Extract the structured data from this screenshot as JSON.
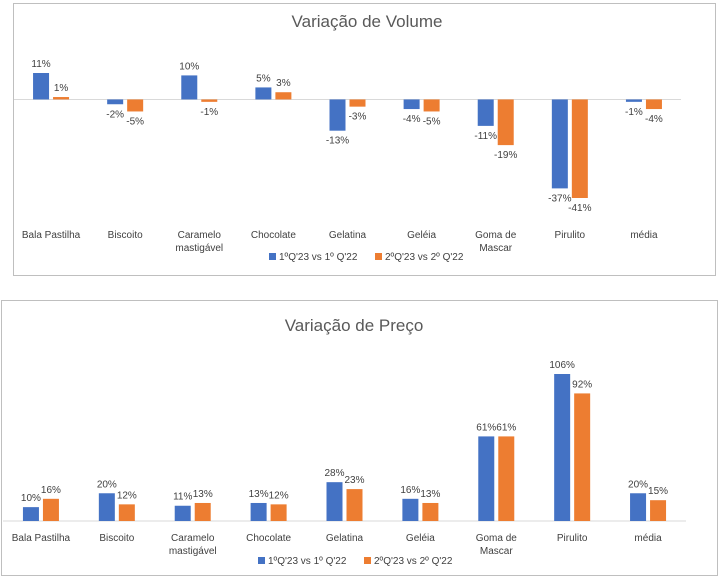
{
  "colors": {
    "series1": "#4472c4",
    "series2": "#ed7d31",
    "axis": "#d9d9d9",
    "text": "#404040",
    "title": "#595959"
  },
  "chart_data": [
    {
      "type": "bar",
      "title": "Variação de Volume",
      "categories": [
        [
          "Bala Pastilha"
        ],
        [
          "Biscoito"
        ],
        [
          "Caramelo",
          "mastigável"
        ],
        [
          "Chocolate"
        ],
        [
          "Gelatina"
        ],
        [
          "Geléia"
        ],
        [
          "Goma de",
          "Mascar"
        ],
        [
          "Pirulito"
        ],
        [
          "média"
        ]
      ],
      "series": [
        {
          "name": "1ºQ'23 vs 1º Q'22",
          "values": [
            11,
            -2,
            10,
            5,
            -13,
            -4,
            -11,
            -37,
            -1
          ],
          "labels": [
            "11%",
            "-2%",
            "10%",
            "5%",
            "-13%",
            "-4%",
            "-11%",
            "-37%",
            "-1%"
          ]
        },
        {
          "name": "2ºQ'23 vs 2º Q'22",
          "values": [
            1,
            -5,
            -1,
            3,
            -3,
            -5,
            -19,
            -41,
            -4
          ],
          "labels": [
            "1%",
            "-5%",
            "-1%",
            "3%",
            "-3%",
            "-5%",
            "-19%",
            "-41%",
            "-4%"
          ]
        }
      ],
      "ylim": [
        -41,
        11
      ],
      "legend": "bottom",
      "grid": false
    },
    {
      "type": "bar",
      "title": "Variação de Preço",
      "categories": [
        [
          "Bala Pastilha"
        ],
        [
          "Biscoito"
        ],
        [
          "Caramelo",
          "mastigável"
        ],
        [
          "Chocolate"
        ],
        [
          "Gelatina"
        ],
        [
          "Geléia"
        ],
        [
          "Goma de",
          "Mascar"
        ],
        [
          "Pirulito"
        ],
        [
          "média"
        ]
      ],
      "series": [
        {
          "name": "1ºQ'23 vs 1º Q'22",
          "values": [
            10,
            20,
            11,
            13,
            28,
            16,
            61,
            106,
            20
          ],
          "labels": [
            "10%",
            "20%",
            "11%",
            "13%",
            "28%",
            "16%",
            "61%",
            "106%",
            "20%"
          ]
        },
        {
          "name": "2ºQ'23 vs 2º Q'22",
          "values": [
            16,
            12,
            13,
            12,
            23,
            13,
            61,
            92,
            15
          ],
          "labels": [
            "16%",
            "12%",
            "13%",
            "12%",
            "23%",
            "13%",
            "61%",
            "92%",
            "15%"
          ]
        }
      ],
      "ylim": [
        0,
        106
      ],
      "legend": "bottom",
      "grid": false
    }
  ]
}
